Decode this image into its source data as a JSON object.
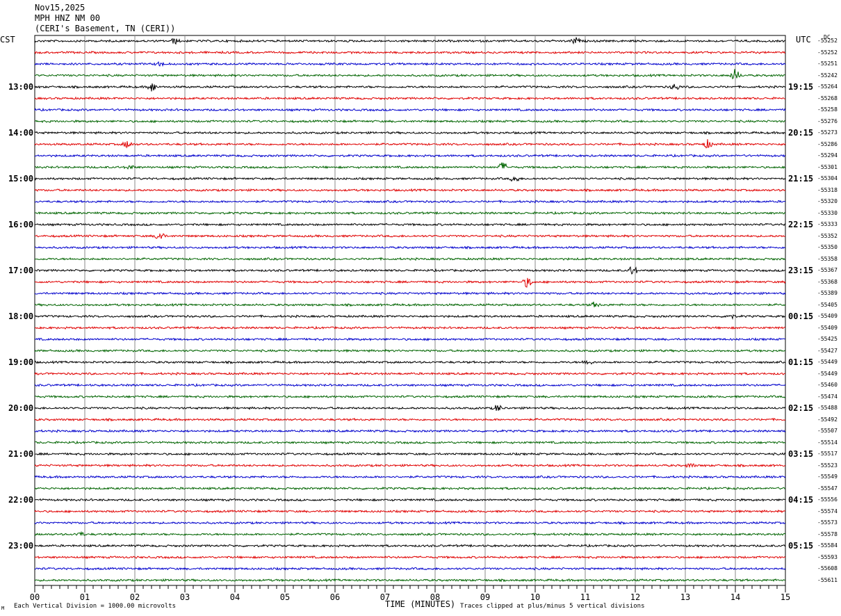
{
  "header": {
    "date": "Nov15,2025",
    "station": "MPH HNZ NM 00",
    "location": "(CERI's Basement, TN (CERI))"
  },
  "left_timezone": "CST",
  "right_timezone": "UTC",
  "dc_label": "DC",
  "footer": {
    "xlabel": "TIME (MINUTES)",
    "scale_note": "Each Vertical Division = 1000.00 microvolts",
    "clip_note": "Traces clipped at plus/minus 5 vertical divisions",
    "corner_mark": "M"
  },
  "chart_data": {
    "type": "line",
    "subtype": "helicorder",
    "x_tick_labels": [
      "00",
      "01",
      "02",
      "03",
      "04",
      "05",
      "06",
      "07",
      "08",
      "09",
      "10",
      "11",
      "12",
      "13",
      "14",
      "15"
    ],
    "xlim": [
      0,
      15
    ],
    "x_unit_label": "TIME (MINUTES)",
    "left_hour_labels": [
      "13:00",
      "14:00",
      "15:00",
      "16:00",
      "17:00",
      "18:00",
      "19:00",
      "20:00",
      "21:00",
      "22:00",
      "23:00"
    ],
    "right_hour_labels": [
      "19:15",
      "20:15",
      "21:15",
      "22:15",
      "23:15",
      "00:15",
      "01:15",
      "02:15",
      "03:15",
      "04:15",
      "05:15"
    ],
    "trace_colors": [
      "#000000",
      "#e00000",
      "#0000cc",
      "#006400"
    ],
    "dc_offsets": [
      "-55252",
      "-55252",
      "-55251",
      "-55242",
      "-55264",
      "-55268",
      "-55258",
      "-55276",
      "-55273",
      "-55286",
      "-55294",
      "-55301",
      "-55304",
      "-55318",
      "-55320",
      "-55330",
      "-55333",
      "-55352",
      "-55350",
      "-55358",
      "-55367",
      "-55368",
      "-55389",
      "-55405",
      "-55409",
      "-55409",
      "-55425",
      "-55427",
      "-55449",
      "-55449",
      "-55460",
      "-55474",
      "-55488",
      "-55492",
      "-55507",
      "-55514",
      "-55517",
      "-55523",
      "-55549",
      "-55547",
      "-55556",
      "-55574",
      "-55573",
      "-55578",
      "-55584",
      "-55593",
      "-55608",
      "-55611"
    ],
    "events": [
      {
        "trace": 0,
        "minute": 2.8,
        "amp": 4
      },
      {
        "trace": 0,
        "minute": 10.8,
        "amp": 5
      },
      {
        "trace": 2,
        "minute": 2.5,
        "amp": 3
      },
      {
        "trace": 3,
        "minute": 14.0,
        "amp": 9
      },
      {
        "trace": 4,
        "minute": 2.35,
        "amp": 7
      },
      {
        "trace": 4,
        "minute": 12.8,
        "amp": 5
      },
      {
        "trace": 9,
        "minute": 1.85,
        "amp": 5
      },
      {
        "trace": 9,
        "minute": 13.45,
        "amp": 6
      },
      {
        "trace": 11,
        "minute": 1.9,
        "amp": 3
      },
      {
        "trace": 11,
        "minute": 9.35,
        "amp": 7
      },
      {
        "trace": 12,
        "minute": 9.6,
        "amp": 5
      },
      {
        "trace": 17,
        "minute": 2.5,
        "amp": 7
      },
      {
        "trace": 20,
        "minute": 11.95,
        "amp": 7
      },
      {
        "trace": 21,
        "minute": 9.85,
        "amp": 8
      },
      {
        "trace": 23,
        "minute": 11.2,
        "amp": 4
      },
      {
        "trace": 24,
        "minute": 13.9,
        "amp": 4
      },
      {
        "trace": 28,
        "minute": 11.05,
        "amp": 4
      },
      {
        "trace": 32,
        "minute": 9.25,
        "amp": 5
      },
      {
        "trace": 37,
        "minute": 13.1,
        "amp": 3
      },
      {
        "trace": 43,
        "minute": 0.9,
        "amp": 3
      }
    ]
  }
}
